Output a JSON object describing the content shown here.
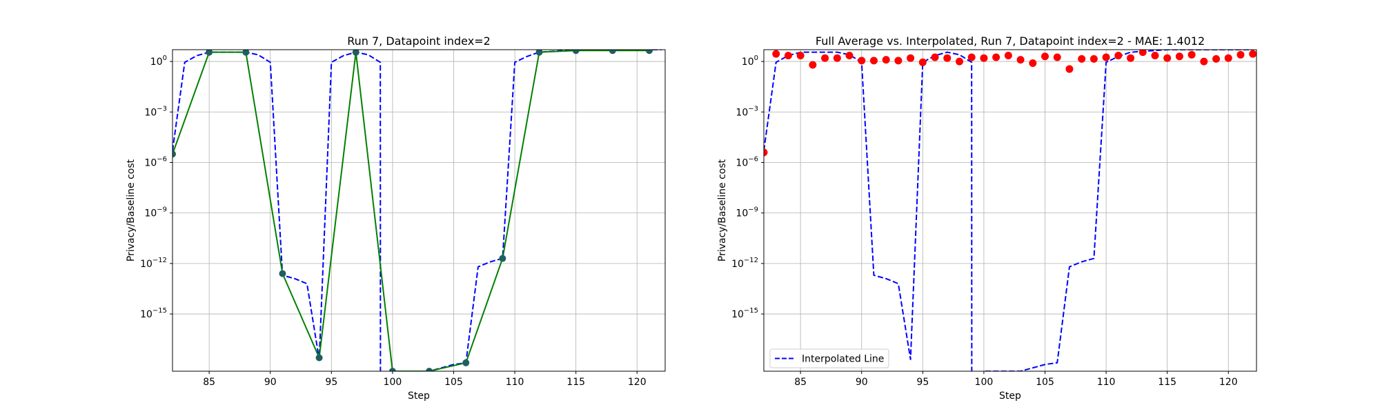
{
  "chart_data": [
    {
      "type": "line",
      "title": "Run 7, Datapoint index=2",
      "xlabel": "Step",
      "ylabel": "Privacy/Baseline cost",
      "xlim": [
        82,
        122.3
      ],
      "ylim_exp": [
        -18.4,
        0.7
      ],
      "yscale": "log",
      "grid": true,
      "xticks": [
        85,
        90,
        95,
        100,
        105,
        110,
        115,
        120
      ],
      "yticks": [
        {
          "exp": 0,
          "base": "10",
          "sup": "0"
        },
        {
          "exp": -3,
          "base": "10",
          "sup": "−3"
        },
        {
          "exp": -6,
          "base": "10",
          "sup": "−6"
        },
        {
          "exp": -9,
          "base": "10",
          "sup": "−9"
        },
        {
          "exp": -12,
          "base": "10",
          "sup": "−12"
        },
        {
          "exp": -15,
          "base": "10",
          "sup": "−15"
        }
      ],
      "series": [
        {
          "style": "dashed",
          "color": "#0000ff",
          "x": [
            82,
            83,
            84,
            85,
            86,
            87,
            88,
            89,
            90,
            91,
            92,
            93,
            94,
            95,
            96,
            97,
            98,
            99,
            99.01,
            100,
            101,
            102,
            103,
            104,
            105,
            106,
            107,
            108,
            109,
            110,
            111,
            112,
            113,
            114,
            115,
            116,
            117,
            118,
            119,
            120,
            121,
            122
          ],
          "log10y": [
            -5.3,
            -0.05,
            0.35,
            0.55,
            0.55,
            0.55,
            0.55,
            0.4,
            -0.05,
            -12.7,
            -12.9,
            -13.2,
            -17.7,
            -0.05,
            0.35,
            0.55,
            0.4,
            -0.05,
            -19,
            -18.4,
            -18.4,
            -18.4,
            -18.4,
            -18.2,
            -18.0,
            -17.9,
            -12.2,
            -11.9,
            -11.7,
            -0.05,
            0.3,
            0.55,
            0.6,
            0.65,
            0.7,
            0.7,
            0.7,
            0.7,
            0.7,
            0.7,
            0.7,
            0.7
          ]
        },
        {
          "style": "solid-markers",
          "color": "#008000",
          "marker_color": "#1f5f5f",
          "x": [
            82,
            85,
            88,
            91,
            94,
            97,
            100,
            103,
            106,
            109,
            112,
            115,
            118,
            121
          ],
          "log10y": [
            -5.5,
            0.55,
            0.55,
            -12.6,
            -17.6,
            0.55,
            -18.4,
            -18.4,
            -17.9,
            -11.7,
            0.55,
            0.65,
            0.65,
            0.65
          ]
        }
      ]
    },
    {
      "type": "line",
      "title": "Full Average vs. Interpolated, Run 7, Datapoint index=2 - MAE: 1.4012",
      "xlabel": "Step",
      "ylabel": "Privacy/Baseline cost",
      "xlim": [
        82,
        122.3
      ],
      "ylim_exp": [
        -18.4,
        0.7
      ],
      "yscale": "log",
      "grid": true,
      "legend": "lower-left",
      "xticks": [
        85,
        90,
        95,
        100,
        105,
        110,
        115,
        120
      ],
      "yticks": [
        {
          "exp": 0,
          "base": "10",
          "sup": "0"
        },
        {
          "exp": -3,
          "base": "10",
          "sup": "−3"
        },
        {
          "exp": -6,
          "base": "10",
          "sup": "−6"
        },
        {
          "exp": -9,
          "base": "10",
          "sup": "−9"
        },
        {
          "exp": -12,
          "base": "10",
          "sup": "−12"
        },
        {
          "exp": -15,
          "base": "10",
          "sup": "−15"
        }
      ],
      "series": [
        {
          "name": "Interpolated Line",
          "style": "dashed",
          "color": "#0000ff",
          "x": [
            82,
            83,
            84,
            85,
            86,
            87,
            88,
            89,
            90,
            91,
            92,
            93,
            94,
            95,
            96,
            97,
            98,
            99,
            99.01,
            100,
            101,
            102,
            103,
            104,
            105,
            106,
            107,
            108,
            109,
            110,
            111,
            112,
            113,
            114,
            115,
            116,
            117,
            118,
            119,
            120,
            121,
            122
          ],
          "log10y": [
            -5.3,
            -0.05,
            0.35,
            0.55,
            0.55,
            0.55,
            0.55,
            0.4,
            -0.05,
            -12.7,
            -12.9,
            -13.2,
            -17.7,
            -0.05,
            0.35,
            0.55,
            0.4,
            -0.05,
            -19,
            -18.4,
            -18.4,
            -18.4,
            -18.4,
            -18.2,
            -18.0,
            -17.9,
            -12.2,
            -11.9,
            -11.7,
            -0.05,
            0.3,
            0.55,
            0.6,
            0.65,
            0.7,
            0.7,
            0.7,
            0.7,
            0.7,
            0.7,
            0.7,
            0.7
          ]
        },
        {
          "style": "markers",
          "color": "#ff0000",
          "x": [
            82,
            83,
            84,
            85,
            86,
            87,
            88,
            89,
            90,
            91,
            92,
            93,
            94,
            95,
            96,
            97,
            98,
            99,
            100,
            101,
            102,
            103,
            104,
            105,
            106,
            107,
            108,
            109,
            110,
            111,
            112,
            113,
            114,
            115,
            116,
            117,
            118,
            119,
            120,
            121,
            122
          ],
          "log10y": [
            -5.4,
            0.45,
            0.35,
            0.35,
            -0.2,
            0.2,
            0.2,
            0.35,
            0.05,
            0.05,
            0.1,
            0.05,
            0.2,
            -0.05,
            0.25,
            0.2,
            0.0,
            0.25,
            0.2,
            0.25,
            0.35,
            0.1,
            -0.1,
            0.3,
            0.25,
            -0.45,
            0.15,
            0.15,
            0.25,
            0.35,
            0.2,
            0.55,
            0.35,
            0.2,
            0.3,
            0.4,
            0.0,
            0.15,
            0.2,
            0.4,
            0.45
          ]
        }
      ]
    }
  ]
}
